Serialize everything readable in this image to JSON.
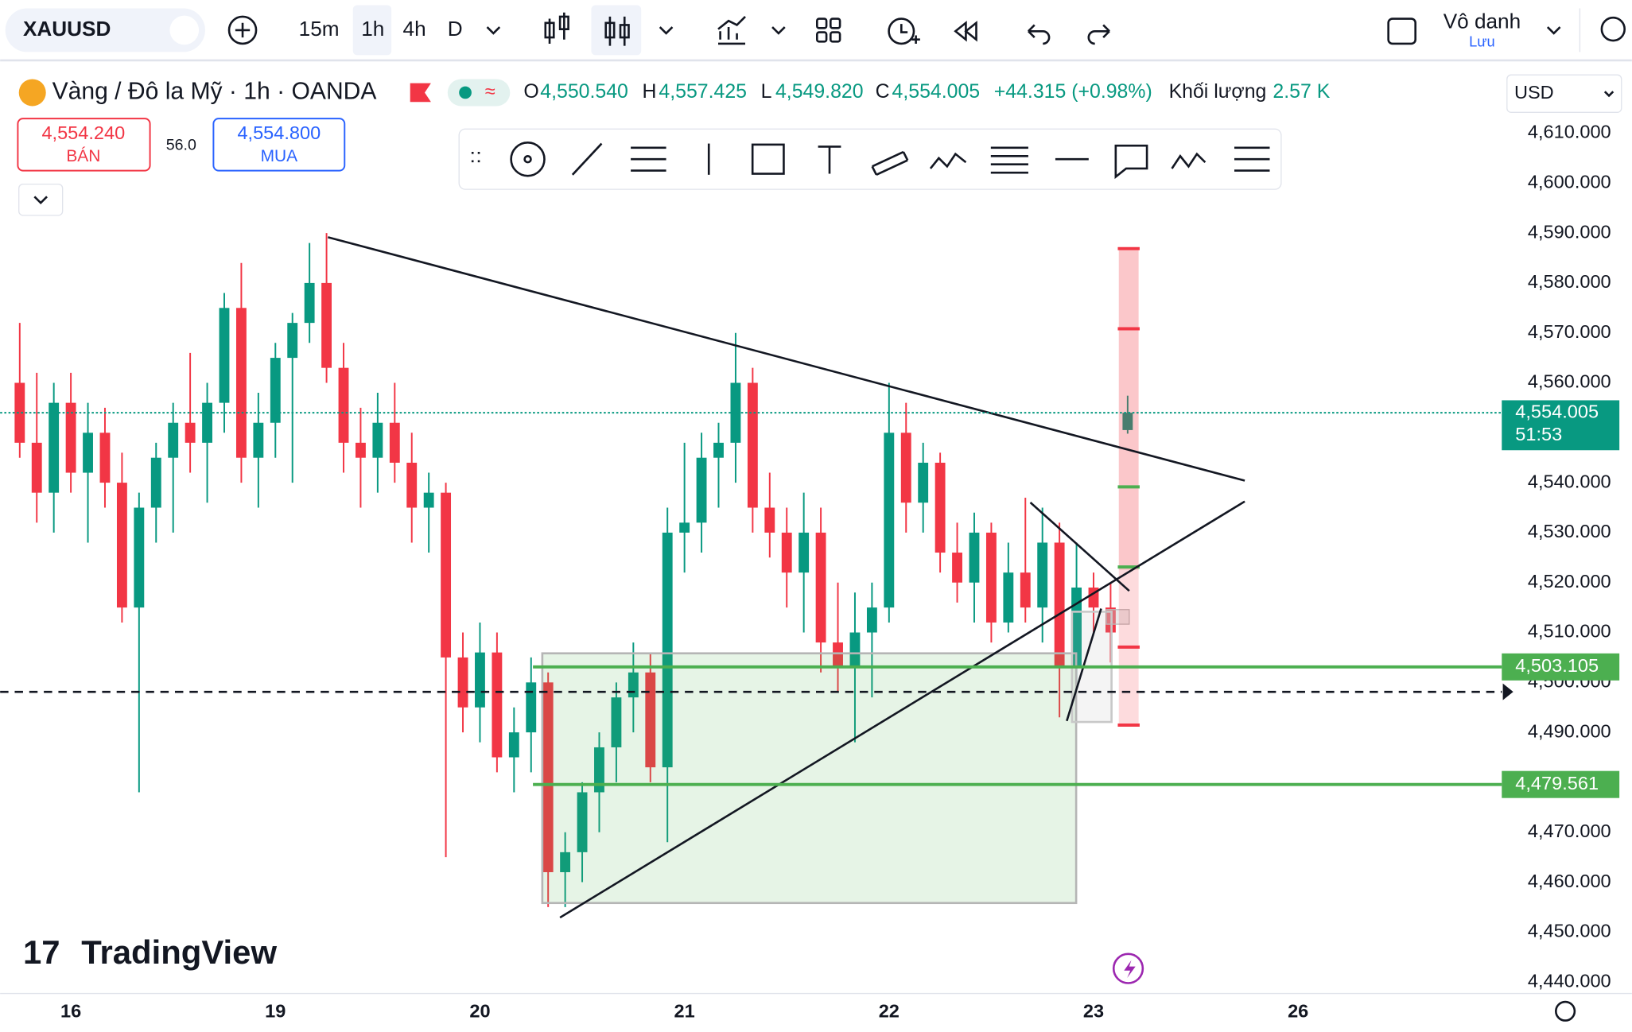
{
  "toolbar": {
    "symbol": "XAUUSD",
    "intervals": [
      "15m",
      "1h",
      "4h",
      "D"
    ],
    "layout_name": "Vô danh",
    "save": "Lưu"
  },
  "legend": {
    "title": "Vàng / Đô la Mỹ · 1h · OANDA",
    "o_label": "O",
    "o": "4,550.540",
    "h_label": "H",
    "h": "4,557.425",
    "l_label": "L",
    "l": "4,549.820",
    "c_label": "C",
    "c": "4,554.005",
    "change": "+44.315 (+0.98%)",
    "volume_label": "Khối lượng",
    "volume": "2.57 K"
  },
  "trade": {
    "sell_price": "4,554.240",
    "sell_label": "BÁN",
    "spread": "56.0",
    "buy_price": "4,554.800",
    "buy_label": "MUA"
  },
  "currency": "USD",
  "logo": "TradingView",
  "chart_data": {
    "type": "candlestick",
    "up_color": "#089981",
    "down_color": "#f23645",
    "x": [
      -6,
      -4,
      -2,
      0,
      2,
      4,
      6,
      8,
      10,
      12,
      14,
      16,
      18,
      20,
      22,
      24,
      26,
      28,
      30,
      32,
      34,
      36,
      38,
      40,
      42,
      44,
      46,
      48,
      50,
      52,
      54,
      56,
      58,
      60,
      62,
      64,
      66,
      68,
      70,
      72,
      74,
      76,
      78,
      80,
      82,
      84,
      86,
      88,
      90,
      92,
      94,
      96,
      98,
      100,
      102,
      104,
      106,
      108,
      110,
      112,
      114,
      116,
      118,
      120,
      122,
      124
    ],
    "open": [
      4560,
      4548,
      4538,
      4556,
      4542,
      4550,
      4540,
      4515,
      4535,
      4545,
      4552,
      4548,
      4556,
      4575,
      4545,
      4552,
      4565,
      4572,
      4580,
      4563,
      4548,
      4545,
      4552,
      4544,
      4535,
      4538,
      4505,
      4495,
      4506,
      4485,
      4490,
      4500,
      4462,
      4466,
      4478,
      4487,
      4497,
      4502,
      4483,
      4530,
      4532,
      4545,
      4548,
      4560,
      4535,
      4530,
      4522,
      4530,
      4508,
      4503,
      4510,
      4515,
      4550,
      4536,
      4544,
      4526,
      4520,
      4530,
      4512,
      4522,
      4515,
      4528,
      4503,
      4519,
      4515,
      4550.54
    ],
    "high": [
      4572,
      4562,
      4560,
      4562,
      4556,
      4555,
      4546,
      4538,
      4548,
      4556,
      4566,
      4560,
      4578,
      4584,
      4558,
      4568,
      4574,
      4588,
      4590,
      4568,
      4555,
      4558,
      4560,
      4550,
      4542,
      4540,
      4510,
      4512,
      4510,
      4495,
      4505,
      4502,
      4470,
      4480,
      4490,
      4500,
      4508,
      4506,
      4535,
      4548,
      4550,
      4552,
      4570,
      4563,
      4542,
      4535,
      4538,
      4535,
      4520,
      4518,
      4520,
      4560,
      4556,
      4548,
      4546,
      4532,
      4534,
      4532,
      4528,
      4537,
      4535,
      4532,
      4528,
      4522,
      4520,
      4557.425
    ],
    "low": [
      4545,
      4532,
      4530,
      4538,
      4528,
      4535,
      4512,
      4478,
      4528,
      4530,
      4542,
      4536,
      4550,
      4540,
      4535,
      4545,
      4540,
      4568,
      4560,
      4542,
      4535,
      4538,
      4540,
      4528,
      4526,
      4465,
      4490,
      4488,
      4482,
      4478,
      4482,
      4455,
      4455,
      4460,
      4470,
      4480,
      4490,
      4480,
      4468,
      4522,
      4526,
      4535,
      4540,
      4530,
      4525,
      4515,
      4510,
      4502,
      4498,
      4488,
      4497,
      4512,
      4530,
      4530,
      4522,
      4516,
      4512,
      4508,
      4510,
      4512,
      4508,
      4493,
      4500,
      4510,
      4504,
      4549.82
    ],
    "close": [
      4548,
      4538,
      4556,
      4542,
      4550,
      4540,
      4515,
      4535,
      4545,
      4552,
      4548,
      4556,
      4575,
      4545,
      4552,
      4565,
      4572,
      4580,
      4563,
      4548,
      4545,
      4552,
      4544,
      4535,
      4538,
      4505,
      4495,
      4506,
      4485,
      4490,
      4500,
      4462,
      4466,
      4478,
      4487,
      4497,
      4502,
      4483,
      4530,
      4532,
      4545,
      4548,
      4560,
      4535,
      4530,
      4522,
      4530,
      4508,
      4503,
      4510,
      4515,
      4550,
      4536,
      4544,
      4526,
      4520,
      4530,
      4512,
      4522,
      4515,
      4528,
      4503,
      4519,
      4515,
      4510,
      4554.005
    ],
    "xlim": [
      -8.3,
      167.9
    ],
    "xticks": [
      {
        "value": 0,
        "label": "16"
      },
      {
        "value": 24,
        "label": "19"
      },
      {
        "value": 48,
        "label": "20"
      },
      {
        "value": 72,
        "label": "21"
      },
      {
        "value": 96,
        "label": "22"
      },
      {
        "value": 120,
        "label": "23"
      },
      {
        "value": 144,
        "label": "26"
      }
    ],
    "ylim": [
      4437.7,
      4623.75
    ],
    "yticks": [
      {
        "value": 4440,
        "label": "4,440.000"
      },
      {
        "value": 4450,
        "label": "4,450.000"
      },
      {
        "value": 4460,
        "label": "4,460.000"
      },
      {
        "value": 4470,
        "label": "4,470.000"
      },
      {
        "value": 4480,
        "label": "4,480.000"
      },
      {
        "value": 4490,
        "label": "4,490.000"
      },
      {
        "value": 4500,
        "label": "4,500.000"
      },
      {
        "value": 4510,
        "label": "4,510.000"
      },
      {
        "value": 4520,
        "label": "4,520.000"
      },
      {
        "value": 4530,
        "label": "4,530.000"
      },
      {
        "value": 4540,
        "label": "4,540.000"
      },
      {
        "value": 4550,
        "label": "4,550.000"
      },
      {
        "value": 4560,
        "label": "4,560.000"
      },
      {
        "value": 4570,
        "label": "4,570.000"
      },
      {
        "value": 4580,
        "label": "4,580.000"
      },
      {
        "value": 4590,
        "label": "4,590.000"
      },
      {
        "value": 4600,
        "label": "4,600.000"
      },
      {
        "value": 4610,
        "label": "4,610.000"
      }
    ],
    "price_lines": [
      {
        "value": 4503.105,
        "label": "4,503.105",
        "color": "#4caf50"
      },
      {
        "value": 4479.561,
        "label": "4,479.561",
        "color": "#4caf50"
      }
    ],
    "last_price": {
      "value": 4554.005,
      "label": "4,554.005",
      "countdown": "51:53",
      "color": "#089981"
    }
  }
}
